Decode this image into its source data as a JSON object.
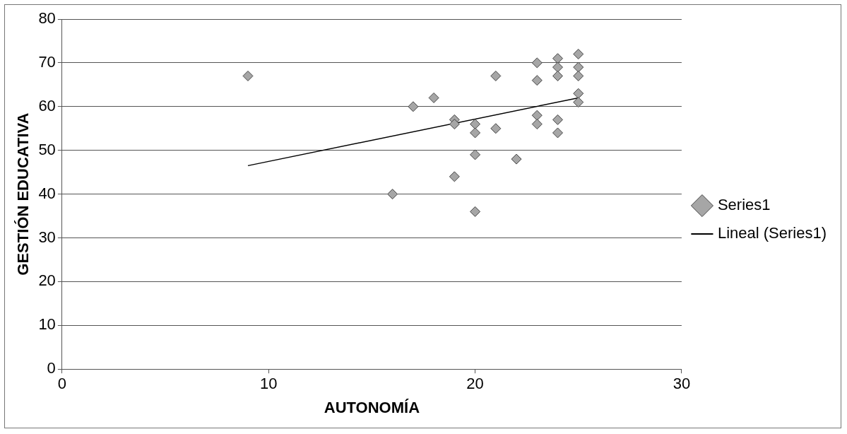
{
  "chart_data": {
    "type": "scatter",
    "xlabel": "AUTONOMÍA",
    "ylabel": "GESTIÓN EDUCATIVA",
    "xlim": [
      0,
      30
    ],
    "xticks": [
      0,
      10,
      20,
      30
    ],
    "ylim": [
      0,
      80
    ],
    "yticks": [
      0,
      10,
      20,
      30,
      40,
      50,
      60,
      70,
      80
    ],
    "grid": "y",
    "legend": "right",
    "series": [
      {
        "name": "Series1",
        "color": "#a6a6a6",
        "marker": "diamond",
        "x": [
          9,
          16,
          17,
          18,
          19,
          19,
          19,
          20,
          20,
          20,
          20,
          21,
          21,
          22,
          23,
          23,
          23,
          23,
          24,
          24,
          24,
          24,
          24,
          25,
          25,
          25,
          25,
          25
        ],
        "values": [
          67,
          40,
          60,
          62,
          57,
          56,
          44,
          56,
          54,
          49,
          36,
          67,
          55,
          48,
          70,
          66,
          58,
          56,
          71,
          69,
          67,
          57,
          54,
          72,
          69,
          67,
          63,
          61
        ]
      },
      {
        "name": "Lineal (Series1)",
        "type": "line",
        "color": "#000000",
        "marker": "none",
        "x": [
          9,
          25
        ],
        "values": [
          46.5,
          62
        ]
      }
    ]
  }
}
